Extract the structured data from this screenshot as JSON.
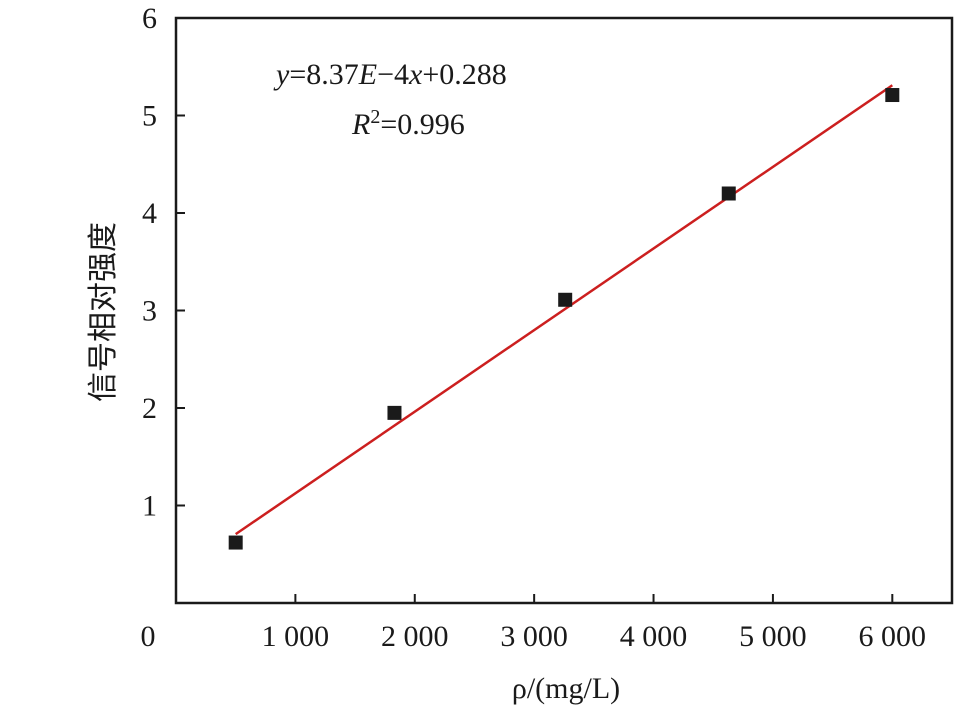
{
  "chart_data": {
    "type": "scatter",
    "x_tick_labels": [
      "0",
      "1 000",
      "2 000",
      "3 000",
      "4 000",
      "5 000",
      "6 000"
    ],
    "y_tick_labels": [
      "1",
      "2",
      "3",
      "4",
      "5",
      "6"
    ],
    "xlim": [
      0,
      6500
    ],
    "ylim": [
      0,
      6
    ],
    "xlabel": "ρ/(mg/L)",
    "ylabel": "信号相对强度",
    "series": [
      {
        "x": [
          500,
          1830,
          3260,
          4630,
          6000
        ],
        "y": [
          0.62,
          1.95,
          3.11,
          4.2,
          5.21
        ],
        "marker": "square",
        "color": "#1a1a1a"
      }
    ],
    "fit_line": {
      "slope": 0.000837,
      "intercept": 0.288,
      "x_range": [
        500,
        6000
      ],
      "color": "#cc1f1f"
    },
    "annotations": {
      "equation_y": "y",
      "equation_mid": "=8.37",
      "equation_E": "E",
      "equation_tail1": "−4",
      "equation_x": "x",
      "equation_tail2": "+0.288",
      "r2_R": "R",
      "r2_sup": "2",
      "r2_value": "=0.996"
    },
    "grid": false,
    "legend": "none"
  }
}
